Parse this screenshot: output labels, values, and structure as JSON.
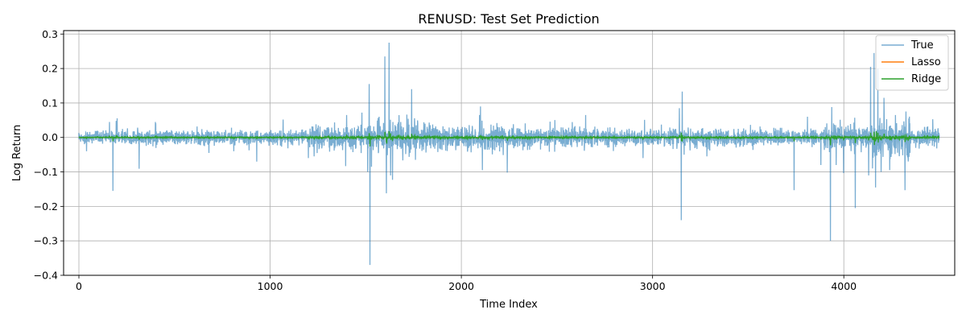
{
  "chart_data": {
    "type": "line",
    "title": "RENUSD: Test Set Prediction",
    "xlabel": "Time Index",
    "ylabel": "Log Return",
    "xlim": [
      -80,
      4580
    ],
    "ylim": [
      -0.4,
      0.31
    ],
    "x_ticks": [
      0,
      1000,
      2000,
      3000,
      4000
    ],
    "y_ticks": [
      -0.4,
      -0.3,
      -0.2,
      -0.1,
      0.0,
      0.1,
      0.2,
      0.3
    ],
    "y_tick_labels": [
      "−0.4",
      "−0.3",
      "−0.2",
      "−0.1",
      "0.0",
      "0.1",
      "0.2",
      "0.3"
    ],
    "grid": true,
    "legend_position": "top-right",
    "n_points": 4500,
    "series": [
      {
        "name": "True",
        "color": "#1f77b4",
        "noise_regimes": [
          {
            "from": 0,
            "to": 150,
            "std": 0.008
          },
          {
            "from": 150,
            "to": 900,
            "std": 0.01
          },
          {
            "from": 900,
            "to": 1200,
            "std": 0.01
          },
          {
            "from": 1200,
            "to": 1500,
            "std": 0.016
          },
          {
            "from": 1500,
            "to": 1800,
            "std": 0.022
          },
          {
            "from": 1800,
            "to": 2300,
            "std": 0.018
          },
          {
            "from": 2300,
            "to": 2700,
            "std": 0.014
          },
          {
            "from": 2700,
            "to": 3100,
            "std": 0.012
          },
          {
            "from": 3100,
            "to": 3400,
            "std": 0.014
          },
          {
            "from": 3400,
            "to": 3900,
            "std": 0.012
          },
          {
            "from": 3900,
            "to": 4150,
            "std": 0.018
          },
          {
            "from": 4150,
            "to": 4350,
            "std": 0.028
          },
          {
            "from": 4350,
            "to": 4500,
            "std": 0.014
          }
        ],
        "spikes": [
          [
            40,
            -0.04
          ],
          [
            160,
            0.045
          ],
          [
            178,
            -0.155
          ],
          [
            195,
            0.048
          ],
          [
            400,
            0.045
          ],
          [
            680,
            -0.045
          ],
          [
            810,
            -0.04
          ],
          [
            930,
            -0.07
          ],
          [
            1200,
            -0.06
          ],
          [
            1230,
            -0.055
          ],
          [
            1400,
            0.065
          ],
          [
            1480,
            0.072
          ],
          [
            1510,
            -0.1
          ],
          [
            1518,
            0.155
          ],
          [
            1522,
            -0.37
          ],
          [
            1530,
            -0.085
          ],
          [
            1570,
            0.06
          ],
          [
            1600,
            0.235
          ],
          [
            1608,
            -0.162
          ],
          [
            1622,
            0.275
          ],
          [
            1630,
            -0.11
          ],
          [
            1640,
            -0.123
          ],
          [
            1740,
            0.14
          ],
          [
            1760,
            -0.065
          ],
          [
            2100,
            0.09
          ],
          [
            2110,
            -0.095
          ],
          [
            2240,
            -0.102
          ],
          [
            2650,
            0.065
          ],
          [
            2950,
            -0.06
          ],
          [
            3140,
            0.085
          ],
          [
            3150,
            -0.24
          ],
          [
            3155,
            0.133
          ],
          [
            3165,
            -0.05
          ],
          [
            3740,
            -0.153
          ],
          [
            3810,
            0.06
          ],
          [
            3880,
            -0.08
          ],
          [
            3930,
            -0.3
          ],
          [
            3937,
            0.088
          ],
          [
            3960,
            -0.08
          ],
          [
            4060,
            -0.205
          ],
          [
            4130,
            -0.11
          ],
          [
            4140,
            0.205
          ],
          [
            4150,
            -0.09
          ],
          [
            4158,
            0.245
          ],
          [
            4166,
            -0.145
          ],
          [
            4178,
            0.2
          ],
          [
            4195,
            -0.1
          ],
          [
            4210,
            0.115
          ],
          [
            4240,
            -0.095
          ],
          [
            4270,
            0.065
          ],
          [
            4320,
            -0.153
          ],
          [
            4340,
            0.055
          ]
        ]
      },
      {
        "name": "Lasso",
        "color": "#ff7f0e",
        "scale": 0.0015
      },
      {
        "name": "Ridge",
        "color": "#2ca02c",
        "scale": 0.12,
        "bumps": [
          [
            1610,
            -0.018
          ],
          [
            1630,
            0.012
          ],
          [
            3150,
            0.014
          ],
          [
            3155,
            -0.012
          ],
          [
            4160,
            -0.022
          ],
          [
            4170,
            0.018
          ],
          [
            4180,
            -0.015
          ]
        ]
      }
    ]
  }
}
